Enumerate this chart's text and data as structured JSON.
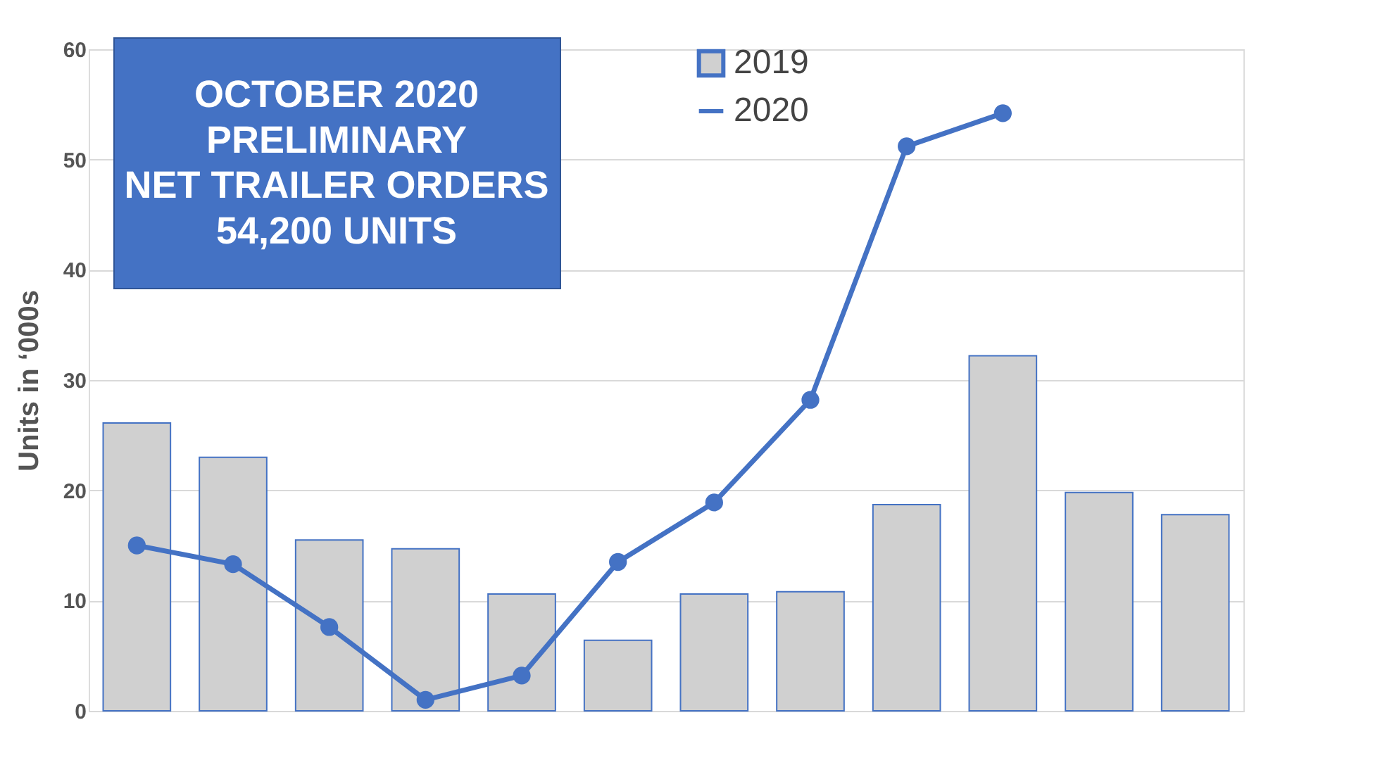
{
  "chart_data": {
    "type": "bar",
    "title": [
      "OCTOBER 2020",
      "PRELIMINARY",
      "NET TRAILER ORDERS",
      "54,200 UNITS"
    ],
    "ylabel": "Units in ‘000s",
    "categories": [
      null,
      null,
      null,
      null,
      null,
      null,
      null,
      null,
      null,
      null,
      null,
      null
    ],
    "series": [
      {
        "name": "2019",
        "color": "#d0d0d0",
        "values": [
          26.1,
          23.0,
          15.5,
          14.7,
          10.6,
          6.4,
          10.6,
          10.8,
          18.7,
          32.2,
          19.8,
          17.8
        ]
      },
      {
        "name": "2020",
        "type": "line",
        "color": "#4472c4",
        "marker": "circle",
        "values": [
          15.0,
          13.3,
          7.6,
          1.0,
          3.2,
          13.5,
          18.9,
          28.2,
          51.2,
          54.2,
          null,
          null
        ]
      }
    ],
    "ylim": [
      0,
      60
    ],
    "yticks": [
      0,
      10,
      20,
      30,
      40,
      50,
      60
    ],
    "grid": "y",
    "legend": "top",
    "tick_labels": "y"
  }
}
